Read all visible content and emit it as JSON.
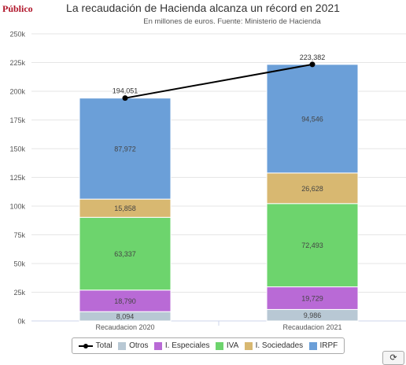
{
  "brand": "Público",
  "chart_data": {
    "type": "bar",
    "stacked": true,
    "title": "La recaudación de Hacienda alcanza un récord en 2021",
    "subtitle": "En millones de euros. Fuente: Ministerio de Hacienda",
    "categories": [
      "Recaudacion 2020",
      "Recaudacion 2021"
    ],
    "ylim": [
      0,
      250000
    ],
    "yticks": [
      "0k",
      "25k",
      "50k",
      "75k",
      "100k",
      "125k",
      "150k",
      "175k",
      "200k",
      "225k",
      "250k"
    ],
    "grid": true,
    "legend_position": "bottom",
    "series": [
      {
        "name": "Otros",
        "color": "#b8c8d4",
        "values": [
          8094,
          9986
        ],
        "labels": [
          "8,094",
          "9,986"
        ]
      },
      {
        "name": "I. Especiales",
        "color": "#b96ad6",
        "values": [
          18790,
          19729
        ],
        "labels": [
          "18,790",
          "19,729"
        ]
      },
      {
        "name": "IVA",
        "color": "#6dd46d",
        "values": [
          63337,
          72493
        ],
        "labels": [
          "63,337",
          "72,493"
        ]
      },
      {
        "name": "I. Sociedades",
        "color": "#d8b871",
        "values": [
          15858,
          26628
        ],
        "labels": [
          "15,858",
          "26,628"
        ]
      },
      {
        "name": "IRPF",
        "color": "#6b9fd8",
        "values": [
          87972,
          94546
        ],
        "labels": [
          "87,972",
          "94,546"
        ]
      }
    ],
    "line": {
      "name": "Total",
      "color": "#000000",
      "values": [
        194051,
        223382
      ],
      "labels": [
        "194,051",
        "223,382"
      ]
    }
  },
  "toolbar": {
    "refresh_icon": "refresh-icon",
    "refresh_glyph": "⟳"
  }
}
